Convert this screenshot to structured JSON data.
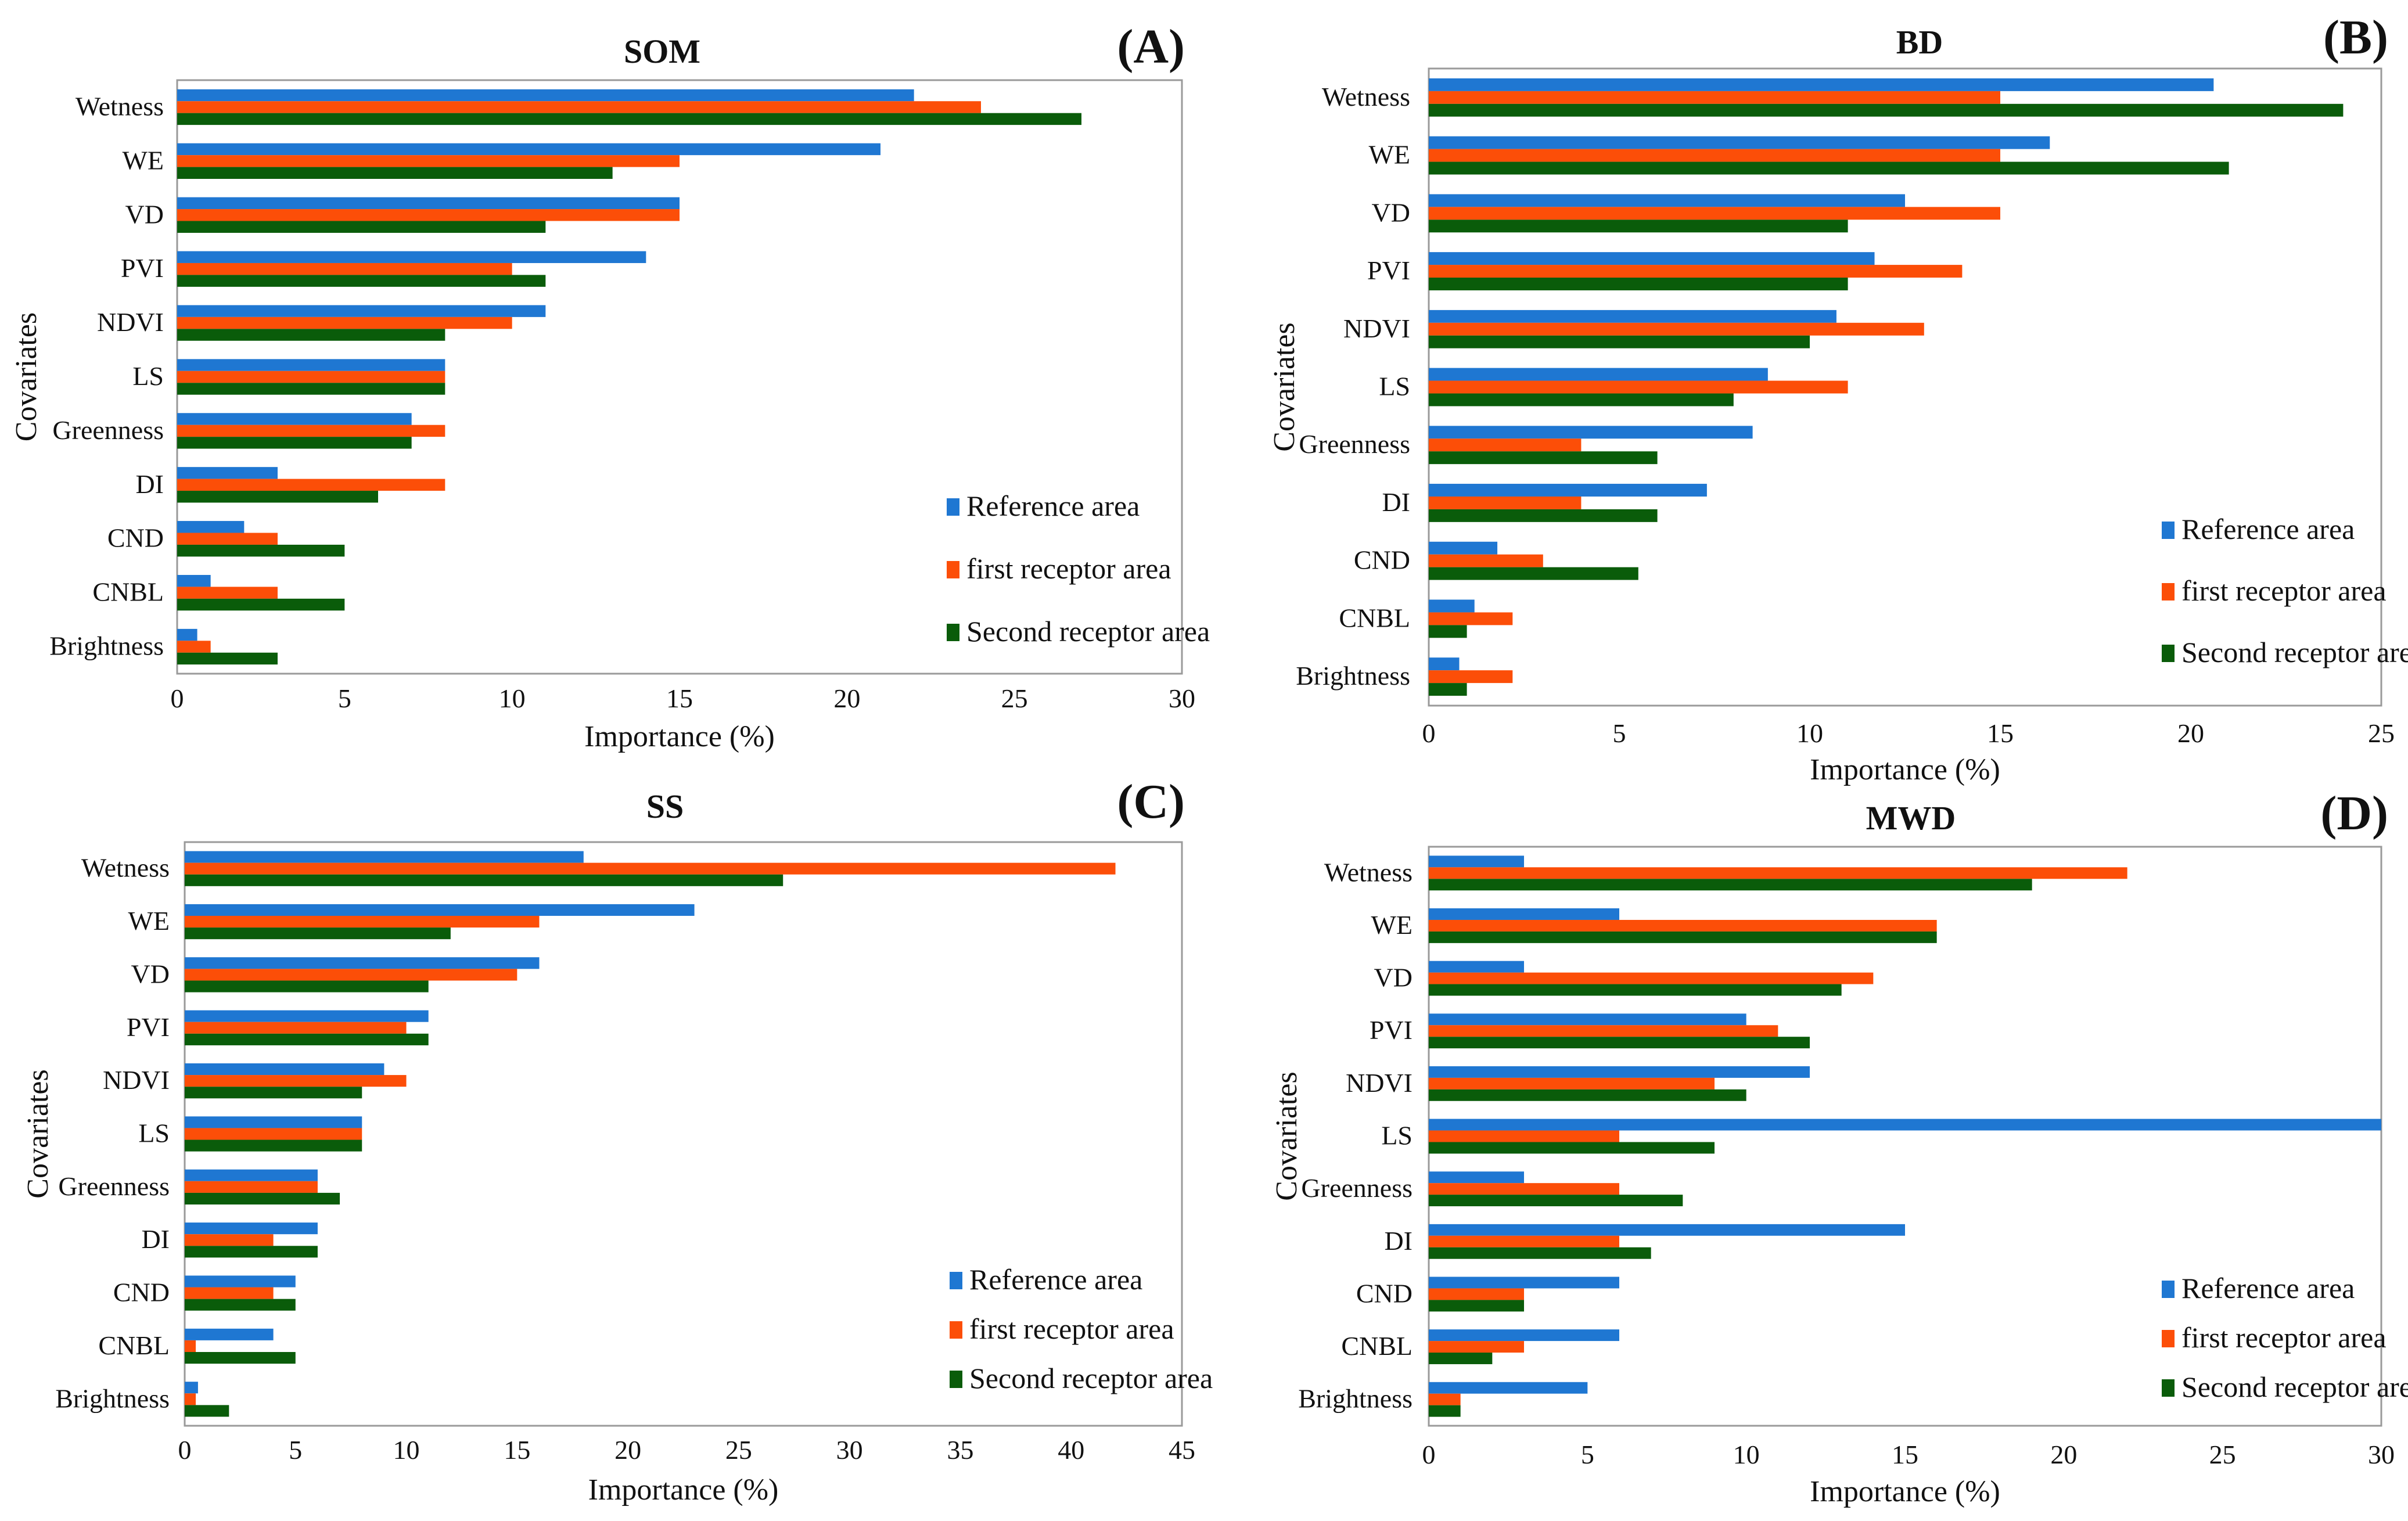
{
  "chart_data": [
    {
      "type": "bar",
      "orientation": "horizontal",
      "panel_label": "(A)",
      "title": "SOM",
      "xlabel": "Importance (%)",
      "ylabel": "Covariates",
      "xlim": [
        0,
        30
      ],
      "xticks": [
        "0",
        "5",
        "10",
        "15",
        "20",
        "25",
        "30"
      ],
      "categories": [
        "Wetness",
        "WE",
        "VD",
        "PVI",
        "NDVI",
        "LS",
        "Greenness",
        "DI",
        "CND",
        "CNBL",
        "Brightness"
      ],
      "series": [
        {
          "name": "Reference area",
          "color": "#1f77d2",
          "values": [
            22,
            21,
            15,
            14,
            11,
            8,
            7,
            3,
            2,
            1,
            0.6
          ]
        },
        {
          "name": "first receptor area",
          "color": "#fc4e08",
          "values": [
            24,
            15,
            15,
            10,
            10,
            8,
            8,
            8,
            3,
            3,
            1
          ]
        },
        {
          "name": "Second receptor area",
          "color": "#0a5c0a",
          "values": [
            27,
            13,
            11,
            11,
            8,
            8,
            7,
            6,
            5,
            5,
            3
          ]
        }
      ],
      "legend_position": "bottom-right"
    },
    {
      "type": "bar",
      "orientation": "horizontal",
      "panel_label": "(B)",
      "title": "BD",
      "xlabel": "Importance (%)",
      "ylabel": "Covariates",
      "xlim": [
        0,
        25
      ],
      "xticks": [
        "0",
        "5",
        "10",
        "15",
        "20",
        "25"
      ],
      "categories": [
        "Wetness",
        "WE",
        "VD",
        "PVI",
        "NDVI",
        "LS",
        "Greenness",
        "DI",
        "CND",
        "CNBL",
        "Brightness"
      ],
      "series": [
        {
          "name": "Reference area",
          "color": "#1f77d2",
          "values": [
            20.6,
            16.3,
            12.5,
            11.7,
            10.7,
            8.9,
            8.5,
            7.3,
            1.8,
            1.2,
            0.8
          ]
        },
        {
          "name": "first receptor area",
          "color": "#fc4e08",
          "values": [
            15,
            15,
            15,
            14,
            13,
            11,
            4,
            4,
            3,
            2.2,
            2.2
          ]
        },
        {
          "name": "Second receptor area",
          "color": "#0a5c0a",
          "values": [
            24,
            21,
            11,
            11,
            10,
            8,
            6,
            6,
            5.5,
            1,
            1
          ]
        }
      ],
      "legend_position": "bottom-right"
    },
    {
      "type": "bar",
      "orientation": "horizontal",
      "panel_label": "(C)",
      "title": "SS",
      "xlabel": "Importance (%)",
      "ylabel": "Covariates",
      "xlim": [
        0,
        45
      ],
      "xticks": [
        "0",
        "5",
        "10",
        "15",
        "20",
        "25",
        "30",
        "35",
        "40",
        "45"
      ],
      "categories": [
        "Wetness",
        "WE",
        "VD",
        "PVI",
        "NDVI",
        "LS",
        "Greenness",
        "DI",
        "CND",
        "CNBL",
        "Brightness"
      ],
      "series": [
        {
          "name": "Reference area",
          "color": "#1f77d2",
          "values": [
            18,
            23,
            16,
            11,
            9,
            8,
            6,
            6,
            5,
            4,
            0.6
          ]
        },
        {
          "name": "first receptor area",
          "color": "#fc4e08",
          "values": [
            42,
            16,
            15,
            10,
            10,
            8,
            6,
            4,
            4,
            0.5,
            0.5
          ]
        },
        {
          "name": "Second receptor area",
          "color": "#0a5c0a",
          "values": [
            27,
            12,
            11,
            11,
            8,
            8,
            7,
            6,
            5,
            5,
            2
          ]
        }
      ],
      "legend_position": "bottom-right"
    },
    {
      "type": "bar",
      "orientation": "horizontal",
      "panel_label": "(D)",
      "title": "MWD",
      "xlabel": "Importance (%)",
      "ylabel": "Covariates",
      "xlim": [
        0,
        30
      ],
      "xticks": [
        "0",
        "5",
        "10",
        "15",
        "20",
        "25",
        "30"
      ],
      "categories": [
        "Wetness",
        "WE",
        "VD",
        "PVI",
        "NDVI",
        "LS",
        "Greenness",
        "DI",
        "CND",
        "CNBL",
        "Brightness"
      ],
      "series": [
        {
          "name": "Reference area",
          "color": "#1f77d2",
          "values": [
            3,
            6,
            3,
            10,
            12,
            30,
            3,
            15,
            6,
            6,
            5
          ]
        },
        {
          "name": "first receptor area",
          "color": "#fc4e08",
          "values": [
            22,
            16,
            14,
            11,
            9,
            6,
            6,
            6,
            3,
            3,
            1
          ]
        },
        {
          "name": "Second receptor area",
          "color": "#0a5c0a",
          "values": [
            19,
            16,
            13,
            12,
            10,
            9,
            8,
            7,
            3,
            2,
            1
          ]
        }
      ],
      "legend_position": "bottom-right"
    }
  ]
}
